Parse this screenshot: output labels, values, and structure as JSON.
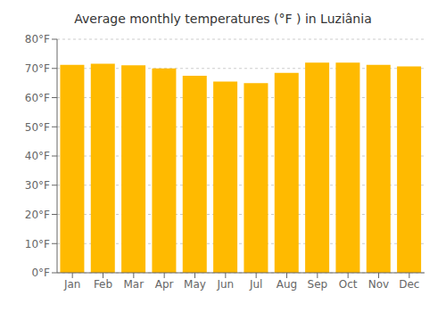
{
  "chart_data": {
    "type": "bar",
    "title": "Average monthly temperatures (°F ) in Luziânia",
    "categories": [
      "Jan",
      "Feb",
      "Mar",
      "Apr",
      "May",
      "Jun",
      "Jul",
      "Aug",
      "Sep",
      "Oct",
      "Nov",
      "Dec"
    ],
    "values": [
      71.2,
      71.6,
      71.1,
      70.0,
      67.5,
      65.5,
      65.0,
      68.5,
      72.0,
      72.0,
      71.2,
      70.7
    ],
    "color": "#FFBA00",
    "ylim": [
      0,
      80
    ],
    "yticks": [
      {
        "value": 0,
        "label": "0°F"
      },
      {
        "value": 10,
        "label": "10°F"
      },
      {
        "value": 20,
        "label": "20°F"
      },
      {
        "value": 30,
        "label": "30°F"
      },
      {
        "value": 40,
        "label": "40°F"
      },
      {
        "value": 50,
        "label": "50°F"
      },
      {
        "value": 60,
        "label": "60°F"
      },
      {
        "value": 70,
        "label": "70°F"
      },
      {
        "value": 80,
        "label": "80°F"
      }
    ],
    "grid": true
  }
}
